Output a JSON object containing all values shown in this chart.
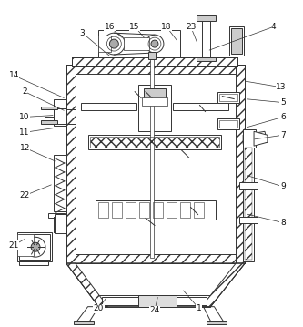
{
  "line_color": "#333333",
  "label_color": "#111111",
  "figsize": [
    3.33,
    3.59
  ],
  "dpi": 100,
  "annotations": [
    [
      "1",
      219,
      340,
      200,
      318
    ],
    [
      "2",
      26,
      100,
      72,
      122
    ],
    [
      "3",
      90,
      35,
      122,
      62
    ],
    [
      "4",
      302,
      28,
      228,
      55
    ],
    [
      "5",
      312,
      112,
      270,
      108
    ],
    [
      "6",
      312,
      128,
      270,
      140
    ],
    [
      "7",
      312,
      148,
      278,
      153
    ],
    [
      "8",
      312,
      245,
      270,
      235
    ],
    [
      "9",
      312,
      205,
      270,
      192
    ],
    [
      "10",
      26,
      128,
      60,
      126
    ],
    [
      "11",
      26,
      145,
      60,
      140
    ],
    [
      "12",
      26,
      162,
      62,
      178
    ],
    [
      "13",
      310,
      95,
      268,
      88
    ],
    [
      "14",
      14,
      82,
      72,
      108
    ],
    [
      "15",
      148,
      28,
      160,
      42
    ],
    [
      "16",
      120,
      28,
      136,
      42
    ],
    [
      "18",
      183,
      28,
      196,
      45
    ],
    [
      "20",
      108,
      340,
      118,
      326
    ],
    [
      "21",
      14,
      270,
      28,
      262
    ],
    [
      "22",
      26,
      215,
      58,
      202
    ],
    [
      "23",
      210,
      28,
      218,
      48
    ],
    [
      "24",
      170,
      342,
      174,
      325
    ]
  ]
}
